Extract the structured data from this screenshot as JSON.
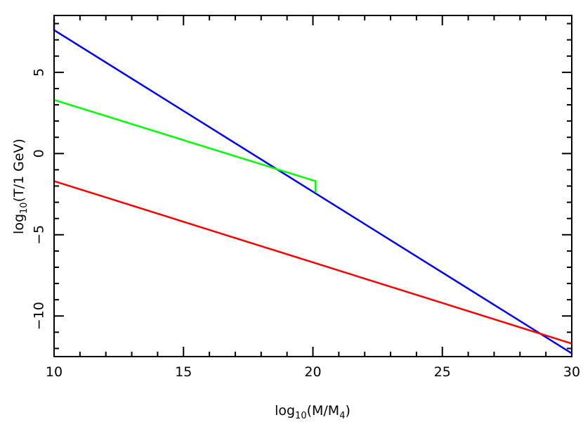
{
  "chart_data": {
    "type": "line",
    "title": "",
    "xlabel": {
      "prefix": "log",
      "prefix_sub": "10",
      "body": "(M/M",
      "body_sub": "4",
      "suffix": ")"
    },
    "ylabel": {
      "prefix": "log",
      "prefix_sub": "10",
      "body": "(T/1 GeV)"
    },
    "xlim": [
      10,
      30
    ],
    "ylim": [
      -12.5,
      8.5
    ],
    "x_ticks": [
      10,
      15,
      20,
      25,
      30
    ],
    "y_ticks": [
      -10,
      -5,
      0,
      5
    ],
    "x_tick_labels": [
      "10",
      "15",
      "20",
      "25",
      "30"
    ],
    "y_tick_labels": [
      "−10",
      "−5",
      "0",
      "5"
    ],
    "x_minor_step": 1,
    "y_minor_step": 1,
    "grid": false,
    "legend": "none",
    "series": [
      {
        "color": "#0000ff",
        "points": [
          [
            10.0,
            8.3
          ],
          [
            10.0,
            7.6
          ],
          [
            30.0,
            -12.3
          ]
        ]
      },
      {
        "color": "#00ff00",
        "points": [
          [
            10.0,
            3.3
          ],
          [
            20.1,
            -1.7
          ],
          [
            20.1,
            -2.4
          ]
        ]
      },
      {
        "color": "#ff0000",
        "points": [
          [
            10.0,
            -1.7
          ],
          [
            30.0,
            -11.7
          ]
        ]
      }
    ]
  }
}
